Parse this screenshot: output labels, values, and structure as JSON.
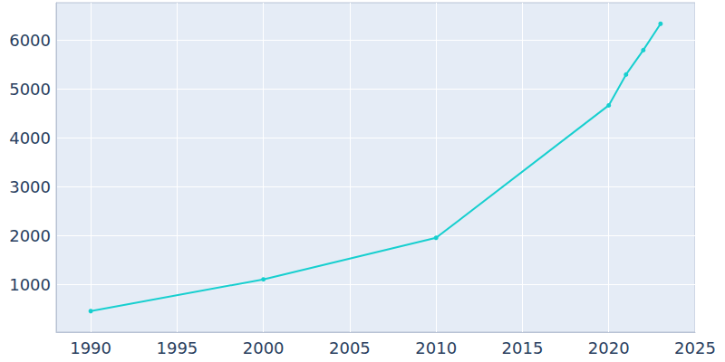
{
  "chart_data": {
    "type": "line",
    "x": [
      1990,
      2000,
      2010,
      2020,
      2021,
      2022,
      2023
    ],
    "values": [
      450,
      1100,
      1950,
      4660,
      5290,
      5790,
      6330
    ],
    "color": "#17cfcf",
    "marker": "circle",
    "xlim": [
      1988,
      2025
    ],
    "xticks": [
      1990,
      1995,
      2000,
      2005,
      2010,
      2015,
      2020,
      2025
    ],
    "ylim": [
      20,
      6760
    ],
    "yticks": [
      1000,
      2000,
      3000,
      4000,
      5000,
      6000
    ],
    "grid": true
  }
}
